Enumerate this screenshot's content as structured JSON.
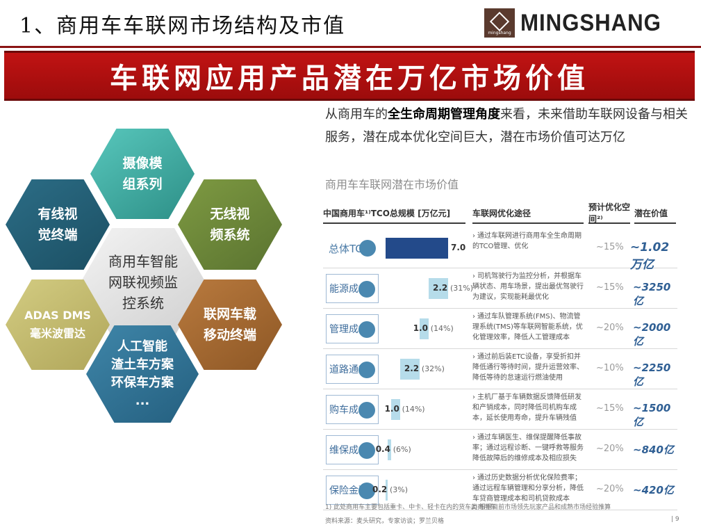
{
  "header": {
    "title": "1、商用车车联网市场结构及市值",
    "logo_text": "MINGSHANG",
    "logo_small": "mingshang"
  },
  "banner": "车联网应用产品潜在万亿市场价值",
  "diagram": {
    "center": "商用车智能\n网联视频监\n控系统",
    "hexes": [
      {
        "id": "camera",
        "label": "摄像模\n组系列",
        "color": "#3fb0a6"
      },
      {
        "id": "wired",
        "label": "有线视\n觉终端",
        "color": "#24607a"
      },
      {
        "id": "wireless",
        "label": "无线视\n频系统",
        "color": "#6d8a3a"
      },
      {
        "id": "adas",
        "label": "ADAS DMS\n毫米波雷达",
        "color": "#c4bc70"
      },
      {
        "id": "mobile",
        "label": "联网车载\n移动终端",
        "color": "#a66a32"
      },
      {
        "id": "ai",
        "label": "人工智能\n渣土车方案\n环保车方案\n...",
        "color": "#2f7498"
      }
    ]
  },
  "intro": {
    "part1": "从商用车的",
    "bold": "全生命周期管理角度",
    "part2": "来看，未来借助车联网设备与相关服务，潜在成本优化空间巨大，潜在市场价值可达万亿"
  },
  "table": {
    "subtitle": "商用车车联网潜在市场价值",
    "headers": [
      "中国商用车¹⁾TCO总规模 [万亿元]",
      "车联网优化途径",
      "预计优化空间²⁾",
      "潜在价值"
    ],
    "rows": [
      {
        "cat": "总体TCO",
        "value": 7.0,
        "value_label": "7.0",
        "share": "",
        "desc": "通过车联网进行商用车全生命周期的TCO管理、优化",
        "opt": "~15%",
        "potential": "~1.02万亿"
      },
      {
        "cat": "能源成本",
        "value": 2.2,
        "value_label": "2.2",
        "share": "(31%)",
        "desc": "司机驾驶行为监控分析，并根据车辆状态、用车场景，提出最优驾驶行为建议，实现能耗最优化",
        "opt": "~15%",
        "potential": "~3250亿"
      },
      {
        "cat": "管理成本",
        "value": 1.0,
        "value_label": "1.0",
        "share": "(14%)",
        "desc": "通过车队管理系统(FMS)、物流管理系统(TMS)等车联网智能系统，优化管理效率，降低人工管理成本",
        "opt": "~20%",
        "potential": "~2000亿"
      },
      {
        "cat": "道路通行",
        "value": 2.2,
        "value_label": "2.2",
        "share": "(32%)",
        "desc": "通过前后装ETC设备，享受折扣并降低通行等待时间，提升运营效率、降低等待的怠速运行燃油使用",
        "opt": "~10%",
        "potential": "~2250亿"
      },
      {
        "cat": "购车成本",
        "value": 1.0,
        "value_label": "1.0",
        "share": "(14%)",
        "desc": "主机厂基于车辆数据反馈降低研发和产销成本，同时降低司机购车成本，延长使用寿命，提升车辆残值",
        "opt": "~15%",
        "potential": "~1500亿"
      },
      {
        "cat": "维保成本",
        "value": 0.4,
        "value_label": "0.4",
        "share": "(6%)",
        "desc": "通过车辆医生、维保提醒降低事故率；通过远程诊断、一键呼救等服务降低故障后的维修成本及相应损失",
        "opt": "~20%",
        "potential": "~840亿"
      },
      {
        "cat": "保险金融",
        "value": 0.2,
        "value_label": "0.2",
        "share": "(3%)",
        "desc": "通过历史数据分析优化保险费率；通过远程车辆管理和分享分析，降低车贷商管理成本和司机贷款成本",
        "opt": "~20%",
        "potential": "~420亿"
      }
    ],
    "footnote1": "1) 此处商用车主要包括重卡、中卡、轻卡在内的货车类商用车",
    "footnote2": "2) 根据目前市场领先玩家产品和成熟市场经验推算",
    "source": "资料来源：麦头研究，专家访谈；罗兰贝格",
    "page": "| 9"
  }
}
